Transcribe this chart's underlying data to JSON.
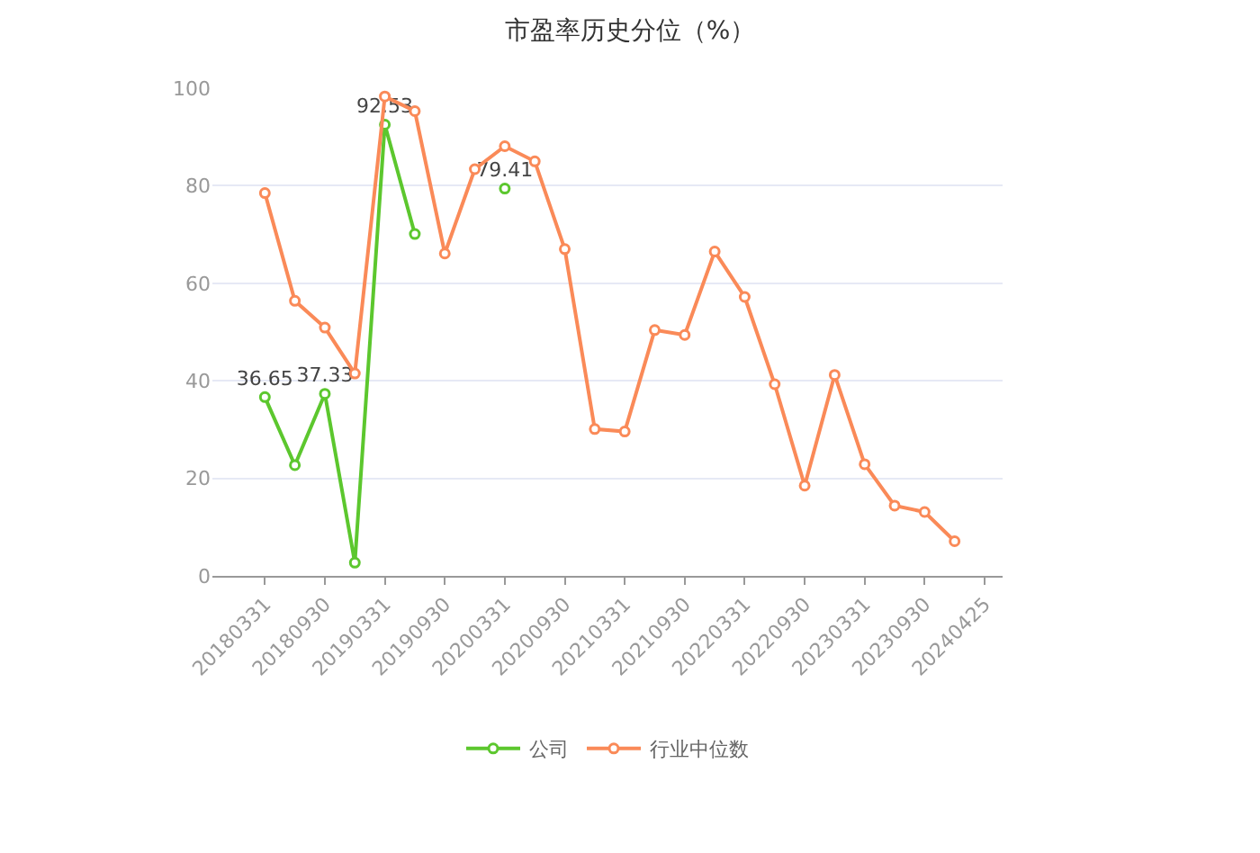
{
  "chart_data": {
    "type": "line",
    "title": "市盈率历史分位（%）",
    "categories": [
      "20180331",
      null,
      "20180930",
      null,
      "20190331",
      null,
      "20190930",
      null,
      "20200331",
      null,
      "20200930",
      null,
      "20210331",
      null,
      "20210930",
      null,
      "20220331",
      null,
      "20220930",
      null,
      "20230331",
      null,
      "20230930",
      null,
      "20240425"
    ],
    "series": [
      {
        "name": "公司",
        "color": "#5cc72e",
        "values": [
          36.65,
          22.7,
          37.33,
          2.7,
          92.53,
          70.1,
          null,
          null,
          79.41,
          null,
          null,
          null,
          null,
          null,
          null,
          null,
          null,
          null,
          null,
          null,
          null,
          null,
          null,
          null,
          null
        ],
        "value_labels": [
          "36.65",
          null,
          "37.33",
          null,
          "92.53",
          null,
          null,
          null,
          "79.41",
          null,
          null,
          null,
          null,
          null,
          null,
          null,
          null,
          null,
          null,
          null,
          null,
          null,
          null,
          null,
          null
        ]
      },
      {
        "name": "行业中位数",
        "color": "#fa8a58",
        "values": [
          78.5,
          56.4,
          50.9,
          41.5,
          98.3,
          95.3,
          66.1,
          83.4,
          88.1,
          85.0,
          67.0,
          30.1,
          29.6,
          50.4,
          49.4,
          66.5,
          57.2,
          39.3,
          18.5,
          41.2,
          22.9,
          14.4,
          13.1,
          7.1,
          null
        ]
      }
    ],
    "ylim": [
      0,
      100
    ],
    "yticks": [
      0,
      20,
      40,
      60,
      80,
      100
    ],
    "grid": "y",
    "legend": "bottom",
    "marker": "circle",
    "line_style": "solid"
  }
}
